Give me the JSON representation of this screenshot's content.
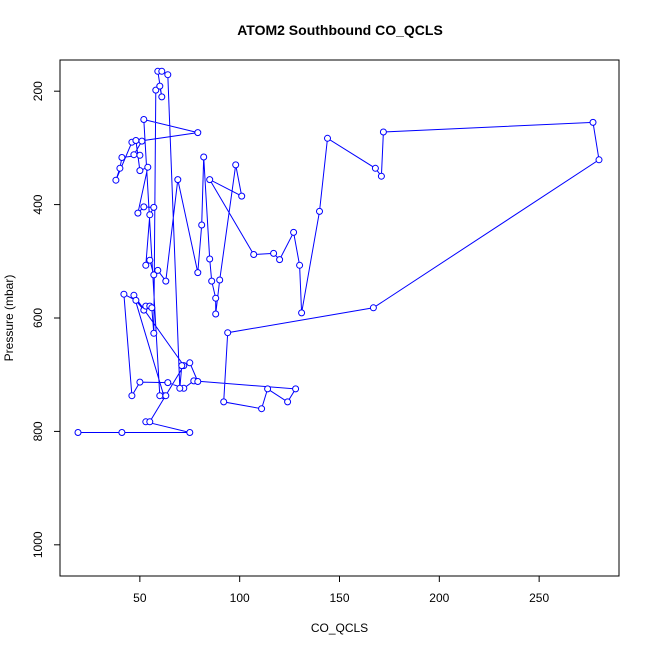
{
  "chart_data": {
    "type": "line",
    "title": "ATOM2 Southbound CO_QCLS",
    "xlabel": "CO_QCLS",
    "ylabel": "Pressure (mbar)",
    "xlim": [
      10,
      290
    ],
    "ylim": [
      1055,
      145
    ],
    "y_axis_reversed": true,
    "x_ticks": [
      50,
      100,
      150,
      200,
      250
    ],
    "y_ticks": [
      200,
      400,
      600,
      800,
      1000
    ],
    "grid": false,
    "legend": "none",
    "series_color": "#0000ff",
    "marker": "open-circle",
    "series": [
      {
        "points": [
          [
            19,
            802
          ],
          [
            41,
            802
          ],
          [
            75,
            802
          ],
          [
            53,
            783
          ],
          [
            55,
            783
          ],
          [
            72,
            684
          ],
          [
            47,
            560
          ],
          [
            62,
            737
          ],
          [
            63,
            737
          ],
          [
            60,
            737
          ],
          [
            52,
            250
          ],
          [
            79,
            273
          ],
          [
            46,
            290
          ],
          [
            38,
            357
          ],
          [
            40,
            336
          ],
          [
            41,
            317
          ],
          [
            50,
            313
          ],
          [
            47,
            312
          ],
          [
            51,
            288
          ],
          [
            48,
            287
          ],
          [
            50,
            340
          ],
          [
            54,
            334
          ],
          [
            49,
            415
          ],
          [
            52,
            404
          ],
          [
            57,
            405
          ],
          [
            55,
            418
          ],
          [
            53,
            507
          ],
          [
            55,
            498
          ],
          [
            57,
            524
          ],
          [
            59,
            516
          ],
          [
            63,
            535
          ],
          [
            69,
            356
          ],
          [
            79,
            520
          ],
          [
            81,
            436
          ],
          [
            82,
            316
          ],
          [
            85,
            496
          ],
          [
            86,
            535
          ],
          [
            88,
            565
          ],
          [
            88,
            593
          ],
          [
            90,
            533
          ],
          [
            98,
            330
          ],
          [
            101,
            385
          ],
          [
            85,
            356
          ],
          [
            107,
            488
          ],
          [
            117,
            486
          ],
          [
            120,
            497
          ],
          [
            127,
            449
          ],
          [
            130,
            507
          ],
          [
            131,
            591
          ],
          [
            140,
            412
          ],
          [
            144,
            283
          ],
          [
            168,
            336
          ],
          [
            171,
            350
          ],
          [
            172,
            272
          ],
          [
            277,
            255
          ],
          [
            280,
            321
          ],
          [
            167,
            582
          ],
          [
            94,
            626
          ],
          [
            92,
            748
          ],
          [
            111,
            760
          ],
          [
            114,
            725
          ],
          [
            124,
            748
          ],
          [
            128,
            725
          ],
          [
            77,
            711
          ],
          [
            72,
            724
          ],
          [
            64,
            714
          ],
          [
            50,
            713
          ],
          [
            46,
            737
          ],
          [
            42,
            558
          ],
          [
            48,
            569
          ],
          [
            52,
            586
          ],
          [
            53,
            579
          ],
          [
            55,
            579
          ],
          [
            56,
            582
          ],
          [
            57,
            627
          ],
          [
            58,
            198
          ],
          [
            60,
            191
          ],
          [
            61,
            210
          ],
          [
            59,
            165
          ],
          [
            61,
            165
          ],
          [
            64,
            171
          ],
          [
            70,
            724
          ],
          [
            71,
            684
          ],
          [
            75,
            679
          ],
          [
            79,
            712
          ]
        ]
      }
    ]
  }
}
